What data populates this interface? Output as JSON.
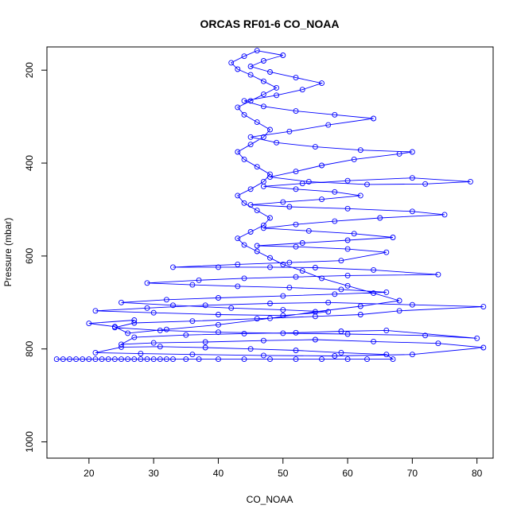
{
  "chart_data": {
    "type": "scatter",
    "title": "ORCAS RF01-6 CO_NOAA",
    "xlabel": "CO_NOAA",
    "ylabel": "Pressure (mbar)",
    "xlim": [
      13.5,
      82.5
    ],
    "ylim": [
      1035,
      150
    ],
    "y_reversed": true,
    "x_ticks": [
      20,
      30,
      40,
      50,
      60,
      70,
      80
    ],
    "y_ticks": [
      200,
      400,
      600,
      800,
      1000
    ],
    "grid": false,
    "legend": "none",
    "series": [
      {
        "color": "#0000ff",
        "marker": "open-circle",
        "connected": true,
        "points": [
          [
            15,
            822
          ],
          [
            16,
            822
          ],
          [
            17,
            822
          ],
          [
            18,
            822
          ],
          [
            19,
            822
          ],
          [
            20,
            822
          ],
          [
            21,
            822
          ],
          [
            22,
            822
          ],
          [
            23,
            822
          ],
          [
            24,
            822
          ],
          [
            25,
            822
          ],
          [
            26,
            822
          ],
          [
            27,
            822
          ],
          [
            28,
            822
          ],
          [
            29,
            822
          ],
          [
            30,
            822
          ],
          [
            31,
            822
          ],
          [
            32,
            822
          ],
          [
            33,
            822
          ],
          [
            35,
            822
          ],
          [
            37,
            822
          ],
          [
            40,
            822
          ],
          [
            44,
            822
          ],
          [
            48,
            822
          ],
          [
            52,
            822
          ],
          [
            56,
            822
          ],
          [
            60,
            822
          ],
          [
            63,
            822
          ],
          [
            67,
            822
          ],
          [
            66,
            812
          ],
          [
            59,
            808
          ],
          [
            52,
            803
          ],
          [
            45,
            800
          ],
          [
            38,
            797
          ],
          [
            31,
            795
          ],
          [
            25,
            796
          ],
          [
            21,
            808
          ],
          [
            28,
            810
          ],
          [
            36,
            812
          ],
          [
            47,
            814
          ],
          [
            58,
            815
          ],
          [
            70,
            812
          ],
          [
            81,
            797
          ],
          [
            74,
            788
          ],
          [
            64,
            784
          ],
          [
            55,
            780
          ],
          [
            47,
            782
          ],
          [
            38,
            785
          ],
          [
            30,
            787
          ],
          [
            25,
            790
          ],
          [
            27,
            775
          ],
          [
            35,
            770
          ],
          [
            44,
            767
          ],
          [
            52,
            765
          ],
          [
            59,
            762
          ],
          [
            66,
            760
          ],
          [
            80,
            777
          ],
          [
            72,
            771
          ],
          [
            60,
            768
          ],
          [
            50,
            766
          ],
          [
            40,
            764
          ],
          [
            31,
            760
          ],
          [
            24,
            754
          ],
          [
            27,
            744
          ],
          [
            36,
            740
          ],
          [
            46,
            735
          ],
          [
            55,
            730
          ],
          [
            62,
            726
          ],
          [
            68,
            718
          ],
          [
            81,
            709
          ],
          [
            70,
            705
          ],
          [
            57,
            700
          ],
          [
            48,
            702
          ],
          [
            38,
            706
          ],
          [
            29,
            712
          ],
          [
            21,
            718
          ],
          [
            30,
            722
          ],
          [
            40,
            726
          ],
          [
            50,
            728
          ],
          [
            57,
            720
          ],
          [
            50,
            716
          ],
          [
            42,
            712
          ],
          [
            33,
            706
          ],
          [
            25,
            700
          ],
          [
            32,
            694
          ],
          [
            40,
            690
          ],
          [
            50,
            686
          ],
          [
            58,
            682
          ],
          [
            66,
            678
          ],
          [
            59,
            672
          ],
          [
            51,
            668
          ],
          [
            43,
            665
          ],
          [
            36,
            662
          ],
          [
            29,
            658
          ],
          [
            37,
            652
          ],
          [
            44,
            648
          ],
          [
            52,
            645
          ],
          [
            60,
            642
          ],
          [
            74,
            640
          ],
          [
            64,
            630
          ],
          [
            55,
            625
          ],
          [
            48,
            624
          ],
          [
            40,
            624
          ],
          [
            33,
            624
          ],
          [
            43,
            618
          ],
          [
            51,
            614
          ],
          [
            59,
            610
          ],
          [
            66,
            592
          ],
          [
            60,
            585
          ],
          [
            52,
            580
          ],
          [
            46,
            578
          ],
          [
            53,
            572
          ],
          [
            60,
            566
          ],
          [
            67,
            560
          ],
          [
            61,
            552
          ],
          [
            54,
            546
          ],
          [
            47,
            540
          ],
          [
            52,
            532
          ],
          [
            58,
            525
          ],
          [
            65,
            518
          ],
          [
            75,
            511
          ],
          [
            70,
            504
          ],
          [
            60,
            498
          ],
          [
            51,
            494
          ],
          [
            45,
            490
          ],
          [
            50,
            484
          ],
          [
            56,
            478
          ],
          [
            62,
            470
          ],
          [
            58,
            462
          ],
          [
            52,
            456
          ],
          [
            47,
            450
          ],
          [
            53,
            444
          ],
          [
            60,
            438
          ],
          [
            70,
            432
          ],
          [
            79,
            440
          ],
          [
            72,
            445
          ],
          [
            63,
            446
          ],
          [
            54,
            440
          ],
          [
            48,
            430
          ],
          [
            52,
            418
          ],
          [
            56,
            405
          ],
          [
            61,
            392
          ],
          [
            68,
            380
          ],
          [
            70,
            376
          ],
          [
            62,
            372
          ],
          [
            55,
            365
          ],
          [
            49,
            356
          ],
          [
            45,
            344
          ],
          [
            51,
            332
          ],
          [
            57,
            318
          ],
          [
            64,
            304
          ],
          [
            58,
            296
          ],
          [
            52,
            288
          ],
          [
            47,
            278
          ],
          [
            44,
            266
          ],
          [
            49,
            254
          ],
          [
            53,
            242
          ],
          [
            56,
            228
          ],
          [
            52,
            216
          ],
          [
            48,
            204
          ],
          [
            45,
            192
          ],
          [
            47,
            180
          ],
          [
            50,
            168
          ],
          [
            46,
            158
          ],
          [
            44,
            170
          ],
          [
            42,
            184
          ],
          [
            43,
            198
          ],
          [
            45,
            210
          ],
          [
            47,
            224
          ],
          [
            49,
            238
          ],
          [
            47,
            252
          ],
          [
            45,
            266
          ],
          [
            43,
            280
          ],
          [
            44,
            296
          ],
          [
            46,
            312
          ],
          [
            48,
            328
          ],
          [
            47,
            344
          ],
          [
            45,
            360
          ],
          [
            43,
            376
          ],
          [
            44,
            392
          ],
          [
            46,
            408
          ],
          [
            48,
            424
          ],
          [
            47,
            440
          ],
          [
            45,
            456
          ],
          [
            43,
            470
          ],
          [
            44,
            486
          ],
          [
            46,
            502
          ],
          [
            48,
            518
          ],
          [
            47,
            534
          ],
          [
            45,
            548
          ],
          [
            43,
            562
          ],
          [
            44,
            576
          ],
          [
            46,
            590
          ],
          [
            48,
            604
          ],
          [
            50,
            618
          ],
          [
            53,
            632
          ],
          [
            56,
            648
          ],
          [
            60,
            664
          ],
          [
            64,
            680
          ],
          [
            68,
            696
          ],
          [
            62,
            708
          ],
          [
            55,
            720
          ],
          [
            48,
            734
          ],
          [
            40,
            748
          ],
          [
            32,
            758
          ],
          [
            26,
            766
          ],
          [
            24,
            752
          ],
          [
            20,
            745
          ],
          [
            27,
            738
          ]
        ]
      }
    ]
  }
}
